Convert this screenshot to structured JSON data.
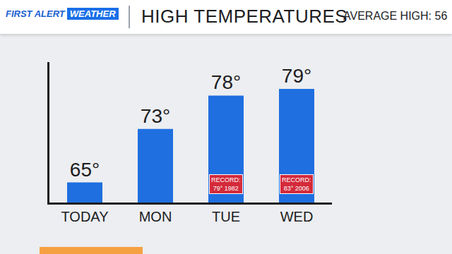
{
  "header": {
    "badge": [
      "FIRST ALERT",
      "WEATHER"
    ],
    "subtitle": "AVERAGE HIGH: 56"
  },
  "chart_data": {
    "type": "bar",
    "title": "HIGH TEMPERATURES",
    "categories": [
      "TODAY",
      "MON",
      "TUE",
      "WED"
    ],
    "values": [
      65,
      73,
      78,
      79
    ],
    "value_labels": [
      "65°",
      "73°",
      "78°",
      "79°"
    ],
    "color": "#1f6fe0",
    "ylim": [
      62,
      83
    ],
    "yticks": [],
    "grid": false,
    "data_labels": true,
    "tick_labels": "x",
    "annotations": [
      {
        "category": "TUE",
        "lines": [
          "RECORD:",
          "79° 1982"
        ]
      },
      {
        "category": "WED",
        "lines": [
          "RECORD:",
          "83° 2006"
        ]
      }
    ]
  }
}
